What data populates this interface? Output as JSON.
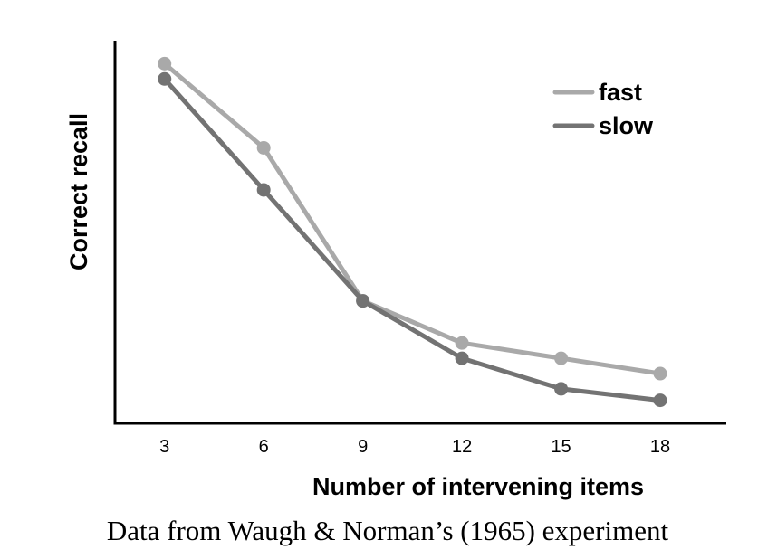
{
  "chart_data": {
    "type": "line",
    "title": "",
    "xlabel": "Number of intervening items",
    "ylabel": "Correct recall",
    "caption": "Data from Waugh & Norman’s (1965) experiment",
    "x": [
      3,
      6,
      9,
      12,
      15,
      18
    ],
    "xlim": [
      1.5,
      20
    ],
    "ylim": [
      0,
      1
    ],
    "grid": false,
    "legend_position": "top-right",
    "series": [
      {
        "name": "fast",
        "color": "#a9a9a9",
        "values": [
          0.94,
          0.72,
          0.32,
          0.21,
          0.17,
          0.13
        ]
      },
      {
        "name": "slow",
        "color": "#737373",
        "values": [
          0.9,
          0.61,
          0.32,
          0.17,
          0.09,
          0.06
        ]
      }
    ]
  }
}
